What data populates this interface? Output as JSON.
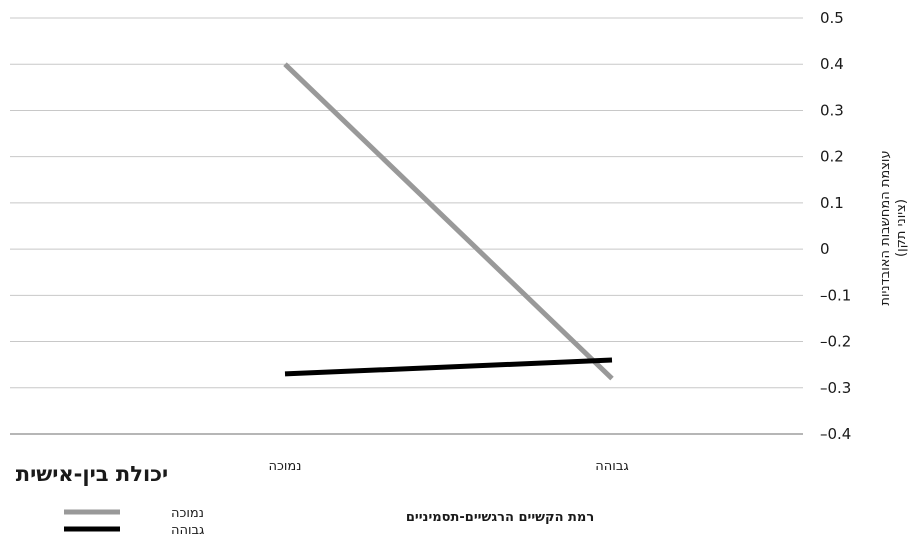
{
  "chart_data": {
    "type": "line",
    "categories": [
      "נמוכה",
      "גבוהה"
    ],
    "series": [
      {
        "name": "נמוכה",
        "values": [
          0.4,
          -0.28
        ],
        "color": "#999999"
      },
      {
        "name": "גבוהה",
        "values": [
          -0.27,
          -0.24
        ],
        "color": "#000000"
      }
    ],
    "xlabel": "רמת הקשיים הרגשיים-תסמיניים",
    "ylabel": [
      "עוצמת המחשבות האובדניות",
      "(ציוני תקן)"
    ],
    "ylim": [
      -0.4,
      0.5
    ],
    "yticks": [
      0.5,
      0.4,
      0.3,
      0.2,
      0.1,
      0,
      -0.1,
      -0.2,
      -0.3,
      -0.4
    ],
    "ytick_labels": [
      "0.5",
      "0.4",
      "0.3",
      "0.2",
      "0.1",
      "0",
      "–0.1",
      "–0.2",
      "–0.3",
      "–0.4"
    ],
    "grid": true,
    "legend": {
      "title": "יכולת בין-אישית",
      "position": "bottom-left"
    }
  }
}
